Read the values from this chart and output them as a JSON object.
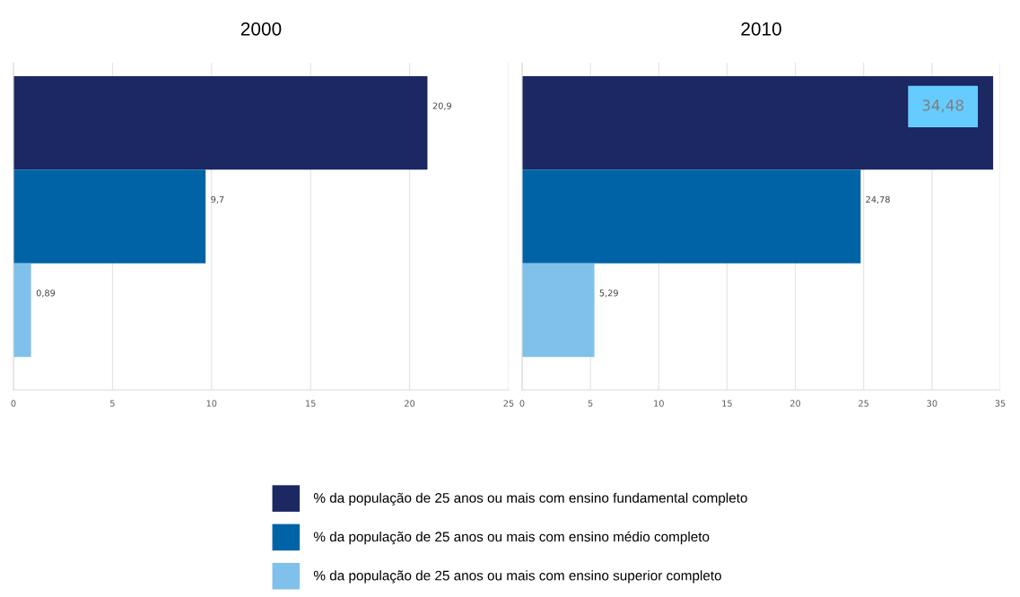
{
  "chart_data": [
    {
      "type": "bar",
      "orientation": "horizontal",
      "title": "2000",
      "categories": [
        null
      ],
      "xlim": [
        0,
        25
      ],
      "xticks": [
        0,
        5,
        10,
        15,
        20,
        25
      ],
      "grid": "x",
      "legend": "bottom",
      "series": [
        {
          "name": "% da população de 25 anos ou mais com ensino fundamental completo",
          "color": "#1b2862",
          "values": [
            20.9
          ],
          "value_labels": [
            "20,9"
          ]
        },
        {
          "name": "% da população de 25 anos ou mais com ensino médio completo",
          "color": "#0063a6",
          "values": [
            9.7
          ],
          "value_labels": [
            "9,7"
          ]
        },
        {
          "name": "% da população de 25 anos ou mais com ensino superior completo",
          "color": "#7fc1ea",
          "values": [
            0.89
          ],
          "value_labels": [
            "0,89"
          ]
        }
      ]
    },
    {
      "type": "bar",
      "orientation": "horizontal",
      "title": "2010",
      "categories": [
        null
      ],
      "xlim": [
        0,
        35
      ],
      "xticks": [
        0,
        5,
        10,
        15,
        20,
        25,
        30,
        35
      ],
      "grid": "x",
      "series": [
        {
          "color": "#1b2862",
          "values": [
            34.48
          ],
          "value_labels": [
            "34,48"
          ]
        },
        {
          "color": "#0063a6",
          "values": [
            24.78
          ],
          "value_labels": [
            "24,78"
          ]
        },
        {
          "color": "#7fc1ea",
          "values": [
            5.29
          ],
          "value_labels": [
            "5,29"
          ]
        }
      ]
    }
  ]
}
